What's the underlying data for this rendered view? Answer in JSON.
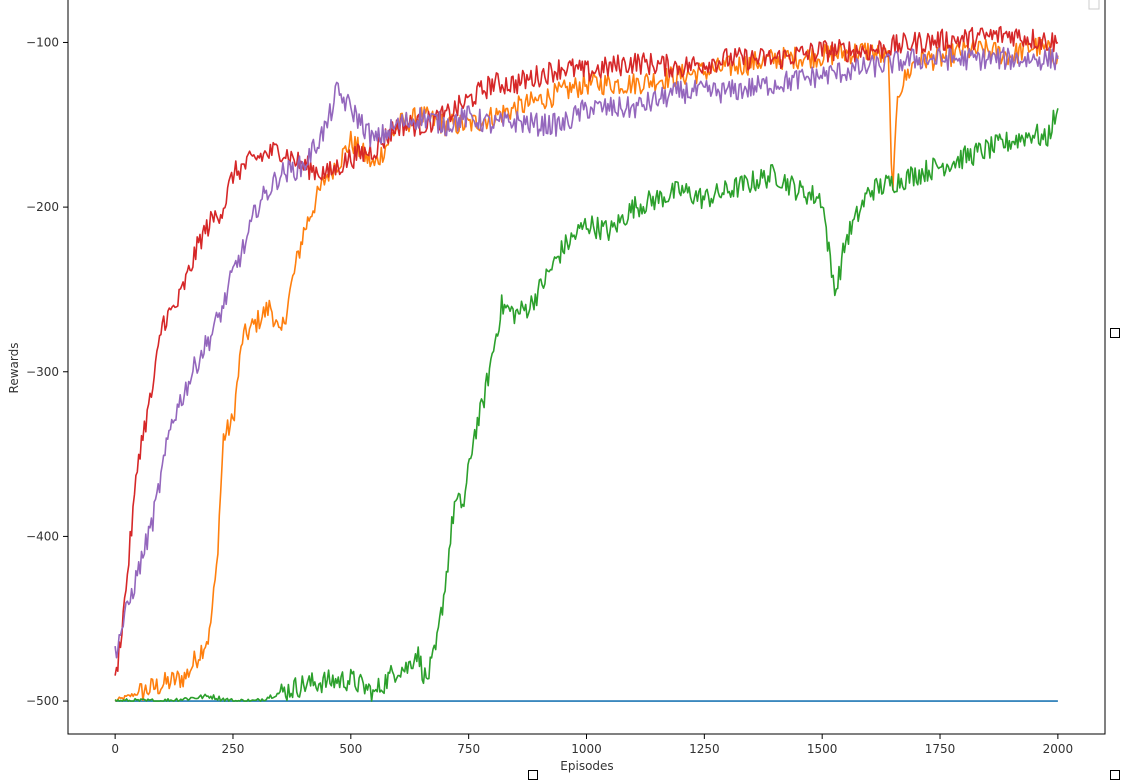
{
  "chart_data": {
    "type": "line",
    "title": "",
    "xlabel": "Episodes",
    "ylabel": "Rewards",
    "xlim": [
      -100,
      2100
    ],
    "ylim": [
      -520,
      -73
    ],
    "xticks": [
      0,
      250,
      500,
      750,
      1000,
      1250,
      1500,
      1750,
      2000
    ],
    "yticks": [
      -500,
      -400,
      -300,
      -200,
      -100
    ],
    "x_tick_labels": [
      "0",
      "250",
      "500",
      "750",
      "1000",
      "1250",
      "1500",
      "1750",
      "2000"
    ],
    "y_tick_labels": [
      "-500",
      "-400",
      "-300",
      "-200",
      "-100"
    ],
    "grid": false,
    "legend": "top-right (empty)",
    "series": [
      {
        "color": "#1f77b4",
        "x": [
          0,
          2000
        ],
        "values": [
          -500,
          -500
        ]
      },
      {
        "color": "#ff7f0e",
        "x": [
          0,
          50,
          100,
          150,
          180,
          200,
          215,
          230,
          250,
          270,
          300,
          330,
          350,
          380,
          400,
          420,
          450,
          480,
          500,
          550,
          600,
          650,
          700,
          750,
          800,
          850,
          900,
          950,
          1000,
          1100,
          1200,
          1300,
          1400,
          1500,
          1600,
          1640,
          1650,
          1660,
          1700,
          1750,
          1800,
          1850,
          1900,
          1950,
          2000
        ],
        "values": [
          -500,
          -495,
          -490,
          -485,
          -470,
          -460,
          -420,
          -340,
          -330,
          -280,
          -270,
          -260,
          -280,
          -240,
          -215,
          -200,
          -180,
          -170,
          -160,
          -175,
          -150,
          -145,
          -150,
          -150,
          -145,
          -140,
          -135,
          -130,
          -125,
          -125,
          -120,
          -115,
          -110,
          -108,
          -105,
          -110,
          -195,
          -130,
          -110,
          -110,
          -105,
          -105,
          -108,
          -102,
          -108
        ]
      },
      {
        "color": "#2ca02c",
        "x": [
          0,
          100,
          200,
          250,
          300,
          350,
          400,
          450,
          500,
          550,
          600,
          620,
          640,
          660,
          680,
          700,
          720,
          740,
          760,
          780,
          800,
          820,
          850,
          880,
          900,
          950,
          1000,
          1050,
          1100,
          1150,
          1200,
          1250,
          1300,
          1350,
          1400,
          1450,
          1500,
          1520,
          1530,
          1550,
          1600,
          1650,
          1700,
          1750,
          1800,
          1850,
          1900,
          1950,
          1975,
          2000
        ],
        "values": [
          -500,
          -500,
          -497,
          -500,
          -500,
          -495,
          -490,
          -488,
          -487,
          -495,
          -480,
          -480,
          -470,
          -488,
          -470,
          -430,
          -380,
          -380,
          -340,
          -320,
          -290,
          -260,
          -265,
          -260,
          -250,
          -225,
          -210,
          -215,
          -200,
          -195,
          -190,
          -195,
          -190,
          -185,
          -180,
          -190,
          -195,
          -240,
          -250,
          -220,
          -190,
          -185,
          -180,
          -175,
          -170,
          -165,
          -160,
          -155,
          -160,
          -140
        ]
      },
      {
        "color": "#d62728",
        "x": [
          0,
          20,
          50,
          80,
          100,
          130,
          150,
          180,
          200,
          230,
          250,
          300,
          350,
          400,
          450,
          500,
          550,
          600,
          650,
          700,
          750,
          800,
          850,
          900,
          950,
          1000,
          1100,
          1200,
          1300,
          1400,
          1500,
          1600,
          1700,
          1800,
          1900,
          1950,
          2000
        ],
        "values": [
          -490,
          -440,
          -350,
          -310,
          -270,
          -260,
          -245,
          -220,
          -210,
          -200,
          -180,
          -170,
          -165,
          -175,
          -180,
          -170,
          -165,
          -150,
          -150,
          -145,
          -135,
          -125,
          -125,
          -120,
          -115,
          -118,
          -112,
          -115,
          -110,
          -110,
          -105,
          -105,
          -100,
          -98,
          -95,
          -98,
          -100
        ]
      },
      {
        "color": "#9467bd",
        "x": [
          0,
          20,
          50,
          80,
          100,
          120,
          150,
          180,
          200,
          230,
          250,
          280,
          300,
          350,
          400,
          450,
          470,
          500,
          550,
          600,
          650,
          700,
          750,
          800,
          850,
          900,
          950,
          1000,
          1100,
          1200,
          1300,
          1400,
          1500,
          1600,
          1700,
          1800,
          1900,
          2000
        ],
        "values": [
          -470,
          -450,
          -420,
          -390,
          -360,
          -330,
          -310,
          -290,
          -280,
          -260,
          -240,
          -220,
          -200,
          -180,
          -175,
          -150,
          -130,
          -140,
          -160,
          -150,
          -145,
          -150,
          -145,
          -150,
          -148,
          -150,
          -150,
          -140,
          -140,
          -130,
          -130,
          -125,
          -120,
          -115,
          -110,
          -110,
          -110,
          -110
        ]
      }
    ]
  }
}
